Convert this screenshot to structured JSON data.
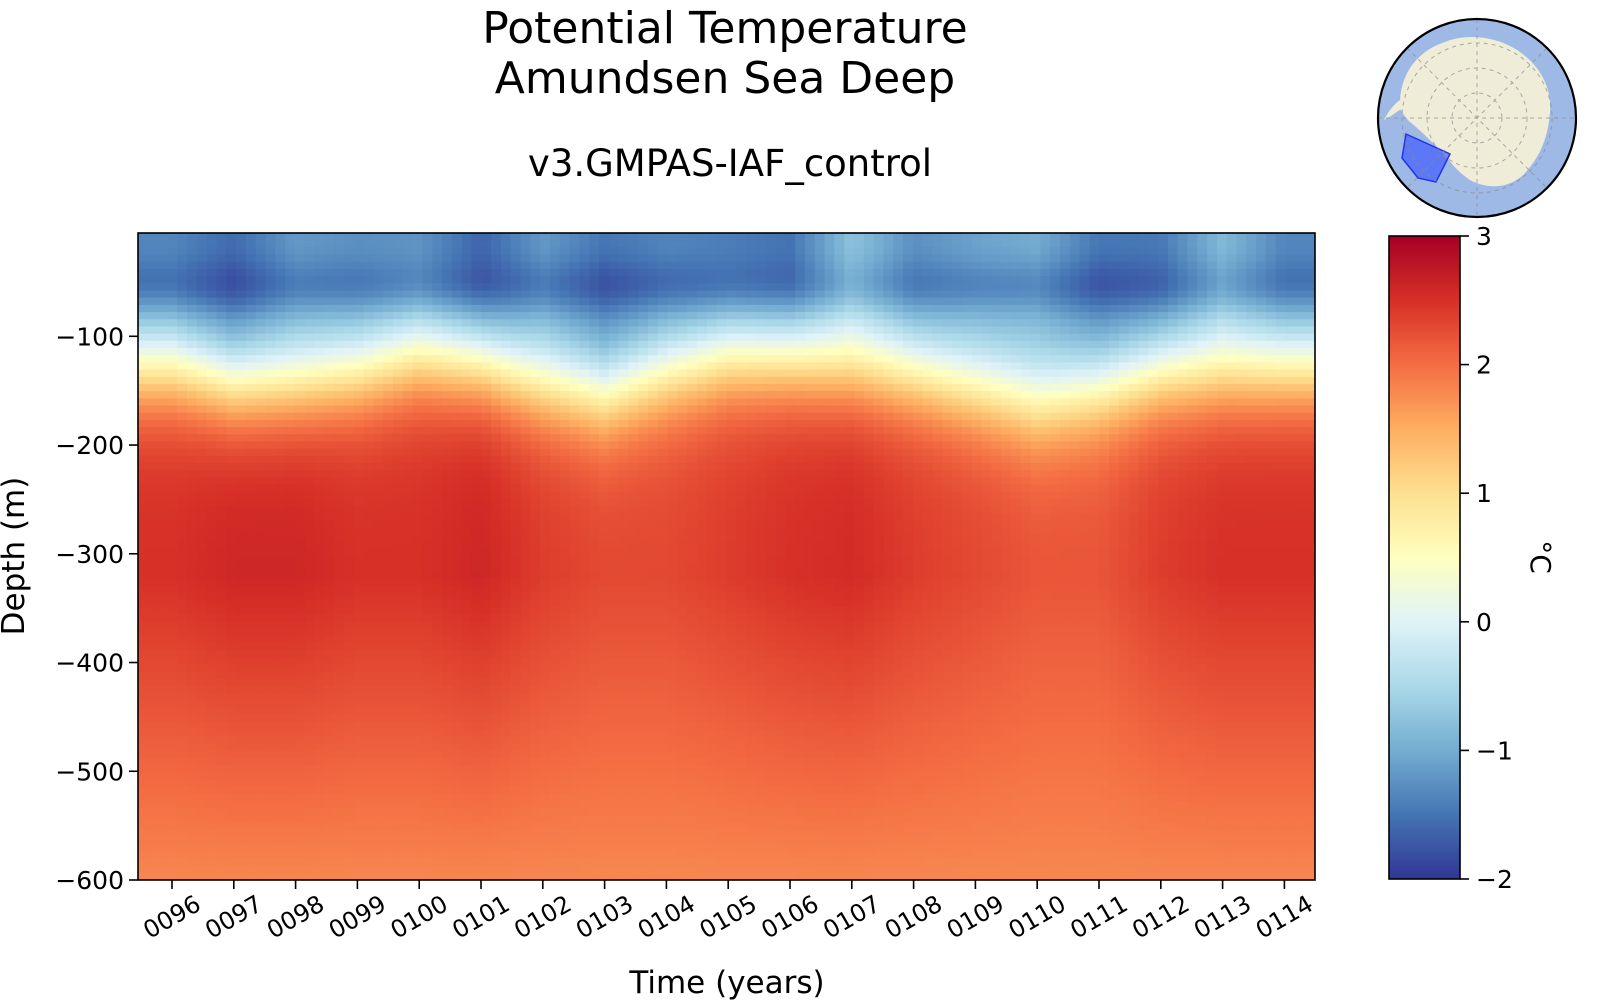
{
  "chart_data": {
    "type": "heatmap",
    "title": [
      "Potential Temperature",
      "Amundsen Sea Deep"
    ],
    "subtitle": "v3.GMPAS-IAF_control",
    "xlabel": "Time (years)",
    "ylabel": "Depth (m)",
    "x_ticks": [
      "0096",
      "0097",
      "0098",
      "0099",
      "0100",
      "0101",
      "0102",
      "0103",
      "0104",
      "0105",
      "0106",
      "0107",
      "0108",
      "0109",
      "0110",
      "0111",
      "0112",
      "0113",
      "0114"
    ],
    "y_ticks": [
      -100,
      -200,
      -300,
      -400,
      -500,
      -600
    ],
    "y_tick_labels": [
      "−100",
      "−200",
      "−300",
      "−400",
      "−500",
      "−600"
    ],
    "ylim": [
      -600,
      -5
    ],
    "colorbar": {
      "label": "°C",
      "range": [
        -2,
        3
      ],
      "ticks": [
        3,
        2,
        1,
        0,
        -1,
        -2
      ],
      "tick_labels": [
        "3",
        "2",
        "1",
        "0",
        "−1",
        "−2"
      ],
      "colormap": "RdYlBu_r"
    },
    "thermocline_depth_by_year": [
      -125,
      -140,
      -140,
      -130,
      -115,
      -120,
      -140,
      -150,
      -130,
      -115,
      -115,
      -125,
      -130,
      -145,
      -160,
      -145,
      -130,
      -130,
      -125
    ],
    "surface_temperature_by_year": [
      -1.4,
      -1.6,
      -1.2,
      -1.3,
      -1.3,
      -1.7,
      -1.2,
      -1.5,
      -1.4,
      -1.5,
      -1.6,
      -0.8,
      -1.3,
      -1.1,
      -1.0,
      -1.5,
      -1.5,
      -0.9,
      -1.4
    ],
    "temperature_at_300m_by_year": [
      2.5,
      2.6,
      2.6,
      2.5,
      2.5,
      2.6,
      2.4,
      2.3,
      2.3,
      2.4,
      2.5,
      2.55,
      2.4,
      2.3,
      2.2,
      2.2,
      2.4,
      2.5,
      2.5
    ],
    "temperature_at_600m": 1.8,
    "inset_map": {
      "description_icon": "antarctica-polar-map-icon",
      "region_highlight_color": "#3a55ff"
    }
  }
}
